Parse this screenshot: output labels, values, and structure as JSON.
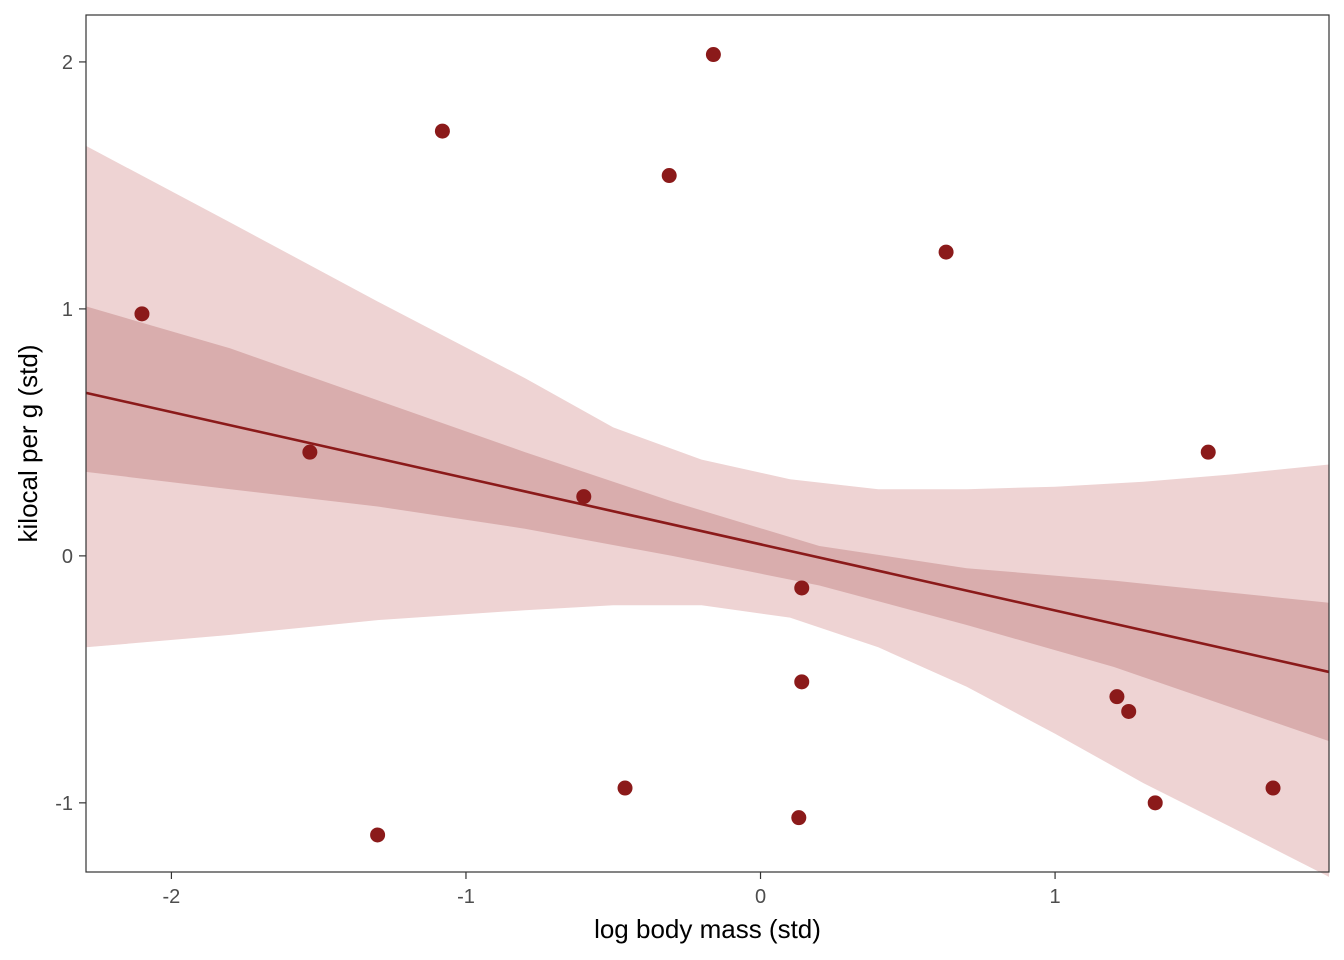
{
  "chart_data": {
    "type": "scatter",
    "xlabel": "log body mass (std)",
    "ylabel": "kilocal per g (std)",
    "xlim": [
      -2.29,
      1.93
    ],
    "ylim": [
      -1.28,
      2.19
    ],
    "x_ticks": [
      -2,
      -1,
      0,
      1
    ],
    "x_tick_labels": [
      "-2",
      "-1",
      "0",
      "1"
    ],
    "y_ticks": [
      -1,
      0,
      1,
      2
    ],
    "y_tick_labels": [
      "-1",
      "0",
      "1",
      "2"
    ],
    "grid": false,
    "colors": {
      "points": "#8b1a1a",
      "line": "#8b1a1a",
      "inner_band": "#d9adad",
      "outer_band": "#eed3d3",
      "frame": "#333333"
    },
    "points": [
      {
        "x": -2.1,
        "y": 0.98
      },
      {
        "x": -1.53,
        "y": 0.42
      },
      {
        "x": -1.3,
        "y": -1.13
      },
      {
        "x": -1.08,
        "y": 1.72
      },
      {
        "x": -0.6,
        "y": 0.24
      },
      {
        "x": -0.46,
        "y": -0.94
      },
      {
        "x": -0.31,
        "y": 1.54
      },
      {
        "x": -0.16,
        "y": 2.03
      },
      {
        "x": 0.13,
        "y": -1.06
      },
      {
        "x": 0.14,
        "y": -0.13
      },
      {
        "x": 0.14,
        "y": -0.51
      },
      {
        "x": 0.63,
        "y": 1.23
      },
      {
        "x": 1.21,
        "y": -0.57
      },
      {
        "x": 1.25,
        "y": -0.63
      },
      {
        "x": 1.34,
        "y": -1.0
      },
      {
        "x": 1.52,
        "y": 0.42
      },
      {
        "x": 1.74,
        "y": -0.94
      }
    ],
    "regression_line": {
      "x": [
        -2.29,
        1.93
      ],
      "y": [
        0.66,
        -0.47
      ]
    },
    "inner_band": {
      "x": [
        -2.29,
        -1.8,
        -1.3,
        -0.8,
        -0.3,
        0.2,
        0.7,
        1.2,
        1.93
      ],
      "lower": [
        0.34,
        0.27,
        0.2,
        0.11,
        0.0,
        -0.12,
        -0.28,
        -0.45,
        -0.75
      ],
      "upper": [
        1.01,
        0.84,
        0.63,
        0.42,
        0.22,
        0.04,
        -0.05,
        -0.1,
        -0.19
      ]
    },
    "outer_band": {
      "x": [
        -2.29,
        -1.8,
        -1.3,
        -0.8,
        -0.5,
        -0.2,
        0.1,
        0.4,
        0.7,
        1.0,
        1.3,
        1.6,
        1.93
      ],
      "lower": [
        -0.37,
        -0.32,
        -0.26,
        -0.22,
        -0.2,
        -0.2,
        -0.25,
        -0.37,
        -0.53,
        -0.72,
        -0.92,
        -1.1,
        -1.3
      ],
      "upper": [
        1.66,
        1.35,
        1.03,
        0.72,
        0.52,
        0.39,
        0.31,
        0.27,
        0.27,
        0.28,
        0.3,
        0.33,
        0.37
      ]
    }
  }
}
